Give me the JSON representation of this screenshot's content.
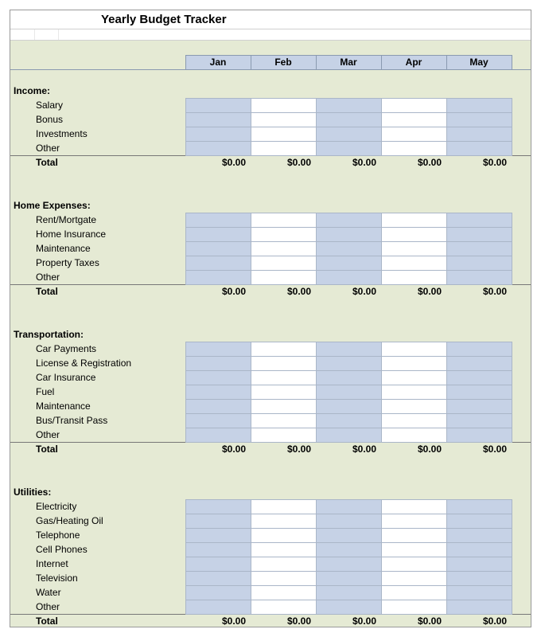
{
  "title": "Yearly Budget Tracker",
  "months": [
    "Jan",
    "Feb",
    "Mar",
    "Apr",
    "May"
  ],
  "colors": {
    "sheet_bg": "#e5ead4",
    "cell_tint": "#c6d2e6",
    "cell_white": "#ffffff",
    "border": "#aab6c8",
    "hdr_border": "#8a9ab0",
    "total_border": "#777777"
  },
  "total_label": "Total",
  "total_value": "$0.00",
  "sections": [
    {
      "title": "Income:",
      "items": [
        "Salary",
        "Bonus",
        "Investments",
        "Other"
      ]
    },
    {
      "title": "Home Expenses:",
      "items": [
        "Rent/Mortgate",
        "Home Insurance",
        "Maintenance",
        "Property Taxes",
        "Other"
      ]
    },
    {
      "title": "Transportation:",
      "items": [
        "Car Payments",
        "License & Registration",
        "Car Insurance",
        "Fuel",
        "Maintenance",
        "Bus/Transit Pass",
        "Other"
      ]
    },
    {
      "title": "Utilities:",
      "items": [
        "Electricity",
        "Gas/Heating Oil",
        "Telephone",
        "Cell Phones",
        "Internet",
        "Television",
        "Water",
        "Other"
      ]
    }
  ]
}
